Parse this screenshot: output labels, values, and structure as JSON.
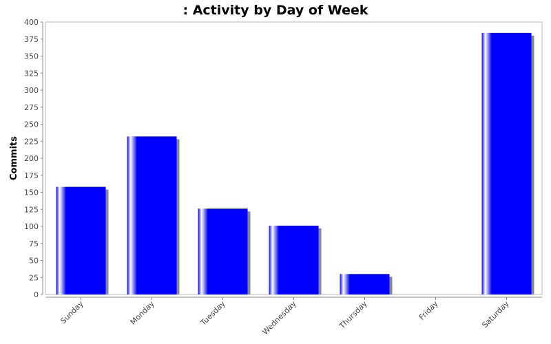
{
  "chart_data": {
    "type": "bar",
    "title": ": Activity by Day of Week",
    "xlabel": "",
    "ylabel": "Commits",
    "categories": [
      "Sunday",
      "Monday",
      "Tuesday",
      "Wednesday",
      "Thursday",
      "Friday",
      "Saturday"
    ],
    "values": [
      158,
      232,
      126,
      101,
      30,
      0,
      384
    ],
    "ylim": [
      0,
      400
    ],
    "yticks": [
      0,
      25,
      50,
      75,
      100,
      125,
      150,
      175,
      200,
      225,
      250,
      275,
      300,
      325,
      350,
      375,
      400
    ],
    "grid": false,
    "legend": "none",
    "colors": {
      "bar": "#0000ff",
      "bar_highlight": "#ffffff",
      "bar_shadow": "#888888",
      "axis": "#888888",
      "text": "#444444"
    }
  }
}
